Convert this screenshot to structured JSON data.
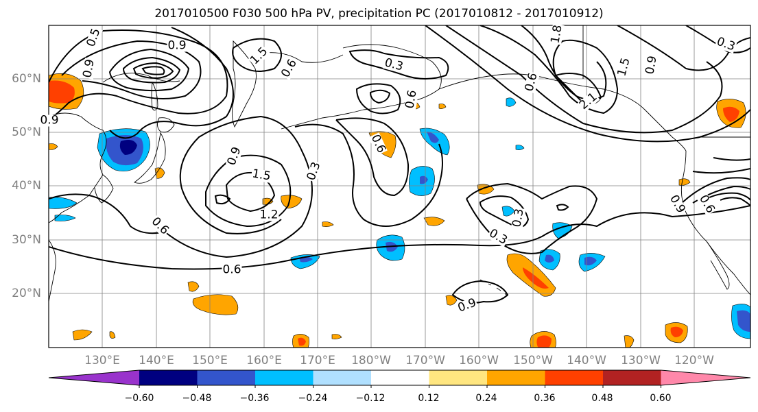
{
  "title": "2017010500 F030 500 hPa PV, precipitation PC (2017010812 - 2017010912)",
  "lat_labels": [
    "60°N",
    "50°N",
    "40°N",
    "30°N",
    "20°N"
  ],
  "lon_labels": [
    "130°E",
    "140°E",
    "150°E",
    "160°E",
    "170°E",
    "180°W",
    "170°W",
    "160°W",
    "150°W",
    "140°W",
    "130°W",
    "120°W"
  ],
  "contour_labels": [
    "0.5",
    "0.9",
    "1.5",
    "0.6",
    "0.3",
    "0.6",
    "0.9",
    "1.8",
    "1.5",
    "0.9",
    "0.3",
    "2.1",
    "0.9",
    "0.9",
    "1.5",
    "1.2",
    "0.3",
    "0.6",
    "0.6",
    "0.9",
    "0.6",
    "0.3",
    "0.3",
    "0.6",
    "0.9",
    "0.6"
  ],
  "colorbar": {
    "colors": [
      "#9933cc",
      "#000080",
      "#3355cc",
      "#00bfff",
      "#b0e0ff",
      "#ffffff",
      "#ffe680",
      "#ffa500",
      "#ff4000",
      "#b22222",
      "#ff88aa"
    ],
    "tick_labels": [
      "−0.60",
      "−0.48",
      "−0.36",
      "−0.24",
      "−0.12",
      "0.12",
      "0.24",
      "0.36",
      "0.48",
      "0.60"
    ]
  }
}
